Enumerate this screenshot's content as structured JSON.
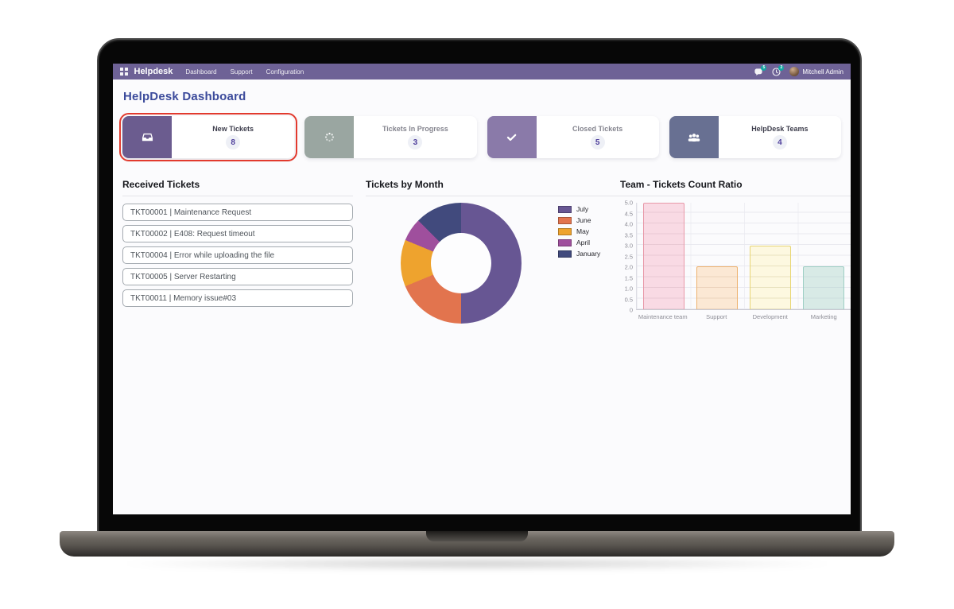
{
  "nav": {
    "app_name": "Helpdesk",
    "menu_items": [
      "Dashboard",
      "Support",
      "Configuration"
    ],
    "messages_badge": "5",
    "activities_badge": "2",
    "user_name": "Mitchell Admin"
  },
  "page": {
    "title": "HelpDesk Dashboard"
  },
  "kpi_cards": [
    {
      "label": "New Tickets",
      "value": "8",
      "icon": "inbox-icon",
      "icon_bg": "#6b5c8f",
      "highlighted": true
    },
    {
      "label": "Tickets In Progress",
      "value": "3",
      "icon": "spinner-icon",
      "icon_bg": "#9aa6a1",
      "highlighted": false
    },
    {
      "label": "Closed Tickets",
      "value": "5",
      "icon": "check-icon",
      "icon_bg": "#8a7aa9",
      "highlighted": false
    },
    {
      "label": "HelpDesk Teams",
      "value": "4",
      "icon": "users-icon",
      "icon_bg": "#687092",
      "highlighted": false
    }
  ],
  "received_tickets": {
    "title": "Received Tickets",
    "items": [
      "TKT00001 | Maintenance Request",
      "TKT00002 | E408: Request timeout",
      "TKT00004 | Error while uploading the file",
      "TKT00005 | Server Restarting",
      "TKT00011 | Memory issue#03"
    ]
  },
  "theme": {
    "navbar_bg": "#6e6296",
    "title_color": "#3b4a9b",
    "highlight_border": "#e23a2e",
    "badge_bg": "#14a5a0"
  },
  "chart_data": [
    {
      "type": "pie",
      "donut": true,
      "title": "Tickets by Month",
      "labels": [
        "July",
        "June",
        "May",
        "April",
        "January"
      ],
      "values": [
        8,
        3,
        2,
        1,
        2
      ],
      "colors": [
        "#675693",
        "#e2744e",
        "#eea32e",
        "#9f4f9d",
        "#414a7d"
      ],
      "legend_position": "right"
    },
    {
      "type": "bar",
      "title": "Team - Tickets Count Ratio",
      "categories": [
        "Maintenance team",
        "Support",
        "Development",
        "Marketing"
      ],
      "values": [
        5,
        2,
        3,
        2
      ],
      "bar_fills": [
        "#f9dae4",
        "#fbe8d4",
        "#fdf8e0",
        "#d8eae6"
      ],
      "bar_borders": [
        "#e898a8",
        "#eeb26e",
        "#e7d573",
        "#9ecfc4"
      ],
      "xlabel": "",
      "ylabel": "",
      "ylim": [
        0,
        5
      ],
      "ytick_step": 0.5,
      "yticks": [
        "5.0",
        "4.5",
        "4.0",
        "3.5",
        "3.0",
        "2.5",
        "2.0",
        "1.5",
        "1.0",
        "0.5",
        "0"
      ],
      "grid": true,
      "segment_unit": 0.5
    }
  ]
}
